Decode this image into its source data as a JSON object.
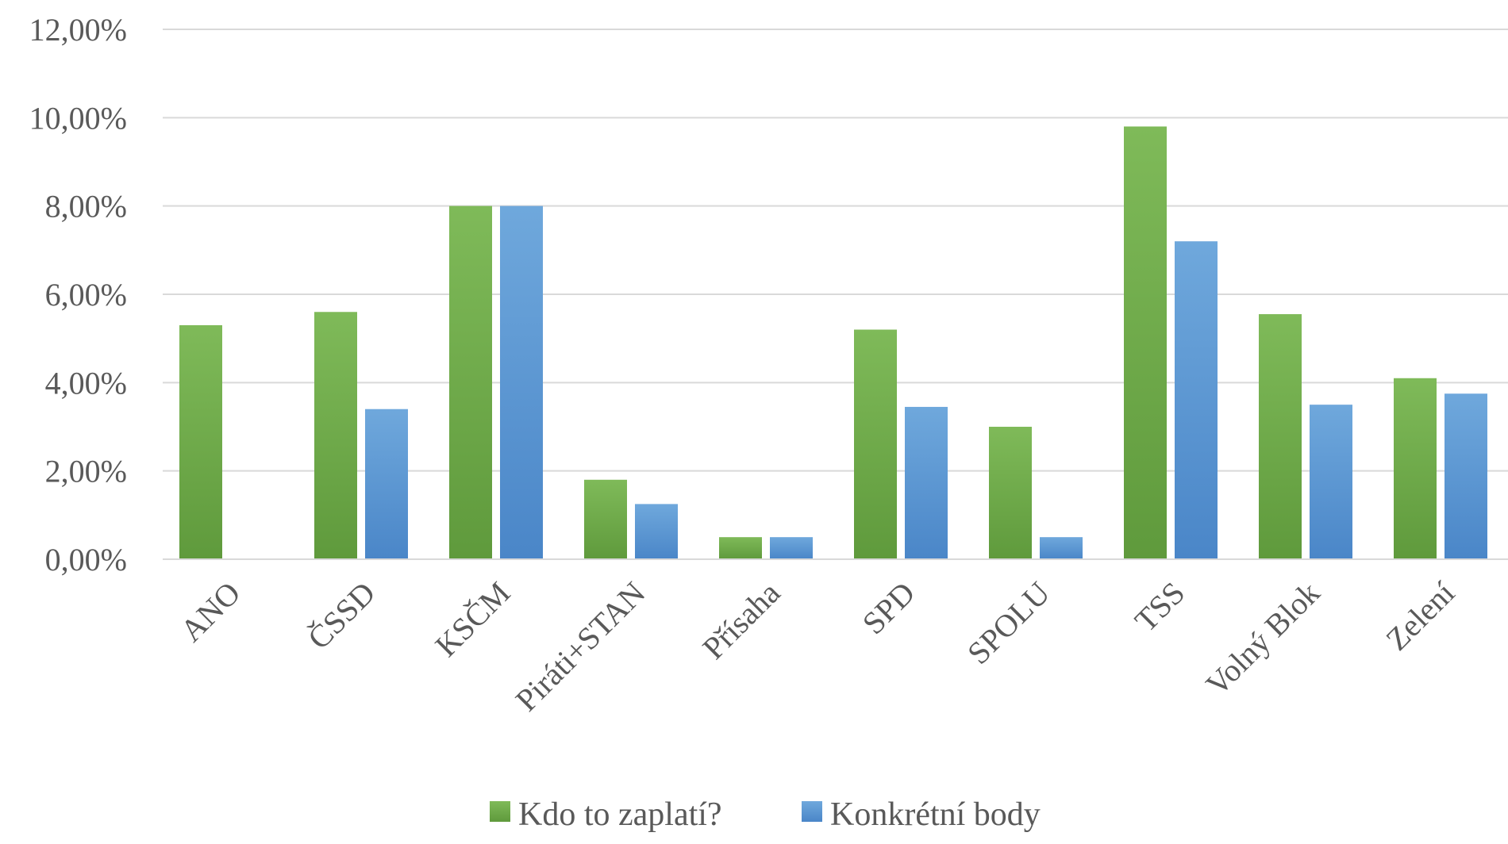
{
  "chart_data": {
    "type": "bar",
    "title": "",
    "xlabel": "",
    "ylabel": "",
    "categories": [
      "ANO",
      "ČSSD",
      "KSČM",
      "Piráti+STAN",
      "Přísaha",
      "SPD",
      "SPOLU",
      "TSS",
      "Volný Blok",
      "Zelení"
    ],
    "series": [
      {
        "name": "Kdo to zaplatí?",
        "color": "#70ad47",
        "values": [
          5.3,
          5.6,
          8.0,
          1.8,
          0.5,
          5.2,
          3.0,
          9.8,
          5.55,
          4.1
        ]
      },
      {
        "name": "Konkrétní body",
        "color": "#5b9bd5",
        "values": [
          0.0,
          3.4,
          8.0,
          1.25,
          0.5,
          3.45,
          0.5,
          7.2,
          3.5,
          3.75
        ]
      }
    ],
    "ylim": [
      0,
      12
    ],
    "yticks": [
      "0,00%",
      "2,00%",
      "4,00%",
      "6,00%",
      "8,00%",
      "10,00%",
      "12,00%"
    ],
    "grid": true,
    "legend_position": "bottom"
  }
}
